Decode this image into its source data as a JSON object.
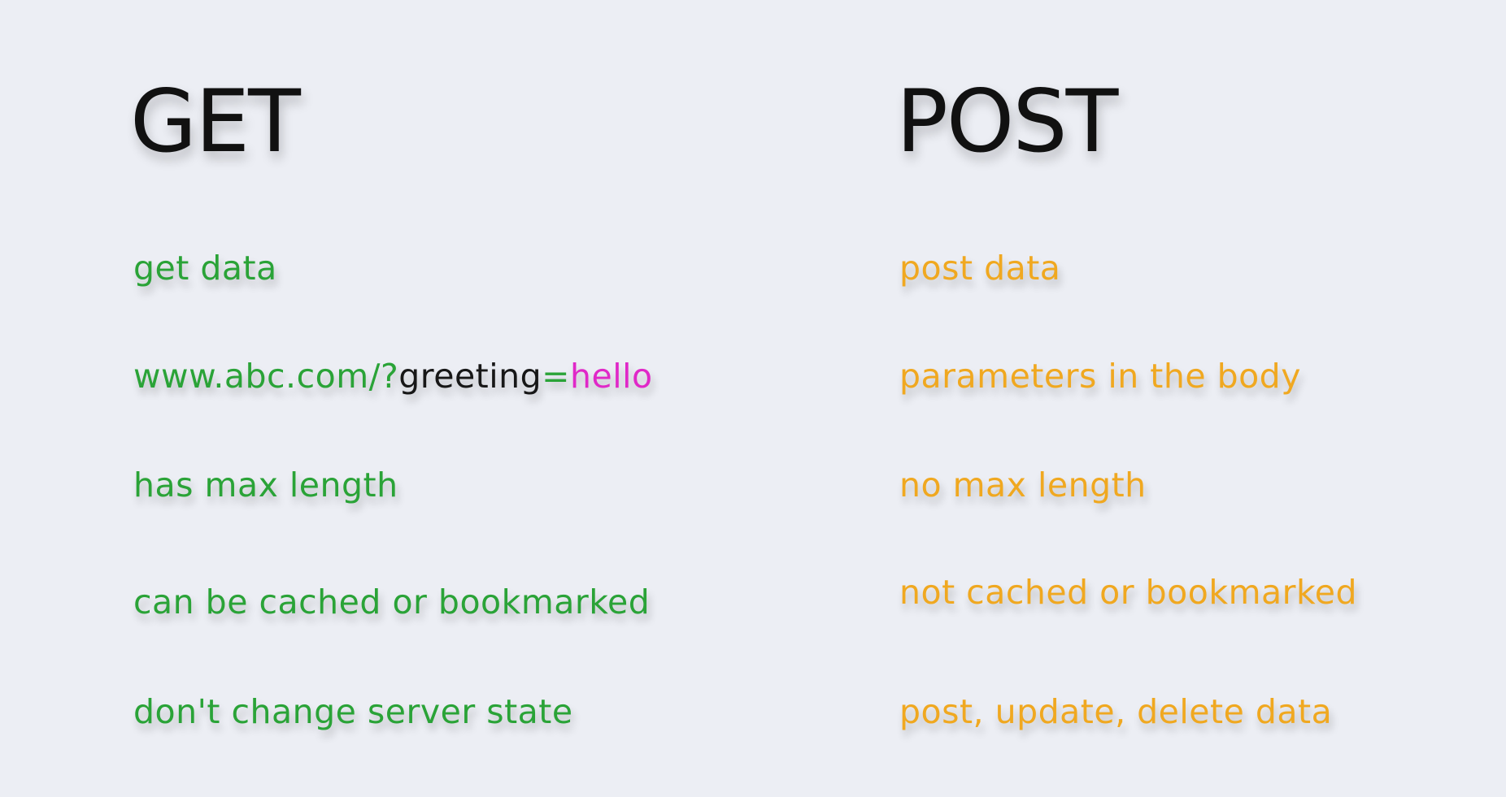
{
  "get": {
    "heading": "GET",
    "items": [
      "get data",
      "has max length",
      "can be cached or bookmarked",
      "don't change server state"
    ],
    "url_example": {
      "prefix": "www.abc.com/?",
      "key": "greeting",
      "equals": "=",
      "value": "hello"
    }
  },
  "post": {
    "heading": "POST",
    "items": [
      "post data",
      "parameters in the body",
      "no max length",
      "not cached or bookmarked",
      "post, update, delete data"
    ]
  },
  "colors": {
    "get_text": "#2aa337",
    "post_text": "#f0a820",
    "url_key": "#171717",
    "url_value": "#e028c8",
    "heading": "#111111",
    "background": "#eceef4"
  }
}
